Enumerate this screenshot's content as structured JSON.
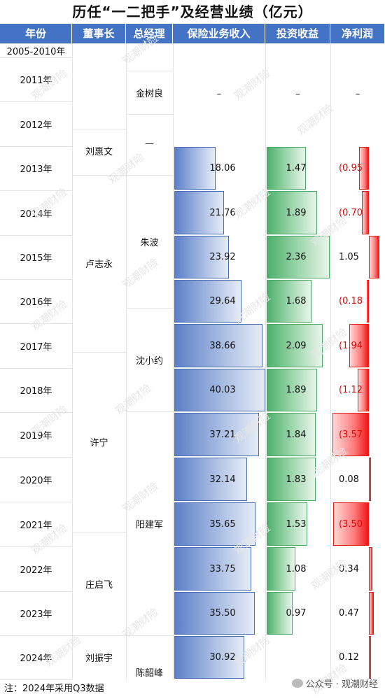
{
  "title": "历任“一二把手”及经营业绩（亿元）",
  "headers": [
    "年份",
    "董事长",
    "总经理",
    "保险业务收入",
    "投资收益",
    "净利润"
  ],
  "years": [
    "2005-2010年",
    "2011年",
    "2012年",
    "2013年",
    "2014年",
    "2015年",
    "2016年",
    "2017年",
    "2018年",
    "2019年",
    "2020年",
    "2021年",
    "2022年",
    "2023年",
    "2024年"
  ],
  "chairmen": [
    "刘惠文",
    "卢志永",
    "许宁",
    "庄启飞",
    "刘振宇"
  ],
  "presidents": [
    "金树良",
    "—",
    "朱波",
    "沈小约",
    "阳建军",
    "陈韶峰"
  ],
  "dash": "–",
  "premium_labels": [
    "18.06",
    "21.76",
    "23.92",
    "29.64",
    "38.66",
    "40.03",
    "37.21",
    "32.14",
    "35.65",
    "33.75",
    "35.50",
    "30.92"
  ],
  "investment_labels": [
    "1.47",
    "1.89",
    "2.36",
    "1.68",
    "2.09",
    "1.89",
    "1.84",
    "1.83",
    "1.53",
    "1.08",
    "0.97",
    ""
  ],
  "profit_labels": [
    "(0.95",
    "(0.70",
    "1.05",
    "(0.18",
    "(1.94",
    "(1.12",
    "(3.57",
    "0.08",
    "(3.50",
    "0.34",
    "0.47",
    "0.12"
  ],
  "chart_data": {
    "type": "table",
    "categories": [
      "2013年",
      "2014年",
      "2015年",
      "2016年",
      "2017年",
      "2018年",
      "2019年",
      "2020年",
      "2021年",
      "2022年",
      "2023年",
      "2024年"
    ],
    "series": [
      {
        "name": "保险业务收入",
        "values": [
          18.06,
          21.76,
          23.92,
          29.64,
          38.66,
          40.03,
          37.21,
          32.14,
          35.65,
          33.75,
          35.5,
          30.92
        ]
      },
      {
        "name": "投资收益",
        "values": [
          1.47,
          1.89,
          2.36,
          1.68,
          2.09,
          1.89,
          1.84,
          1.83,
          1.53,
          1.08,
          0.97,
          null
        ]
      },
      {
        "name": "净利润",
        "values": [
          -0.95,
          -0.7,
          1.05,
          -0.18,
          -1.94,
          -1.12,
          -3.57,
          0.08,
          -3.5,
          0.34,
          0.47,
          0.12
        ]
      }
    ]
  },
  "note": "注：2024年采用Q3数据",
  "brand": "公众号 · 观潮财经",
  "watermark": "观潮财险",
  "colors": {
    "header": "#4472c4",
    "premium": "#5b7fc7",
    "investment": "#4db06c",
    "profit_bar": "#f01616",
    "negative_text": "#e60000"
  }
}
